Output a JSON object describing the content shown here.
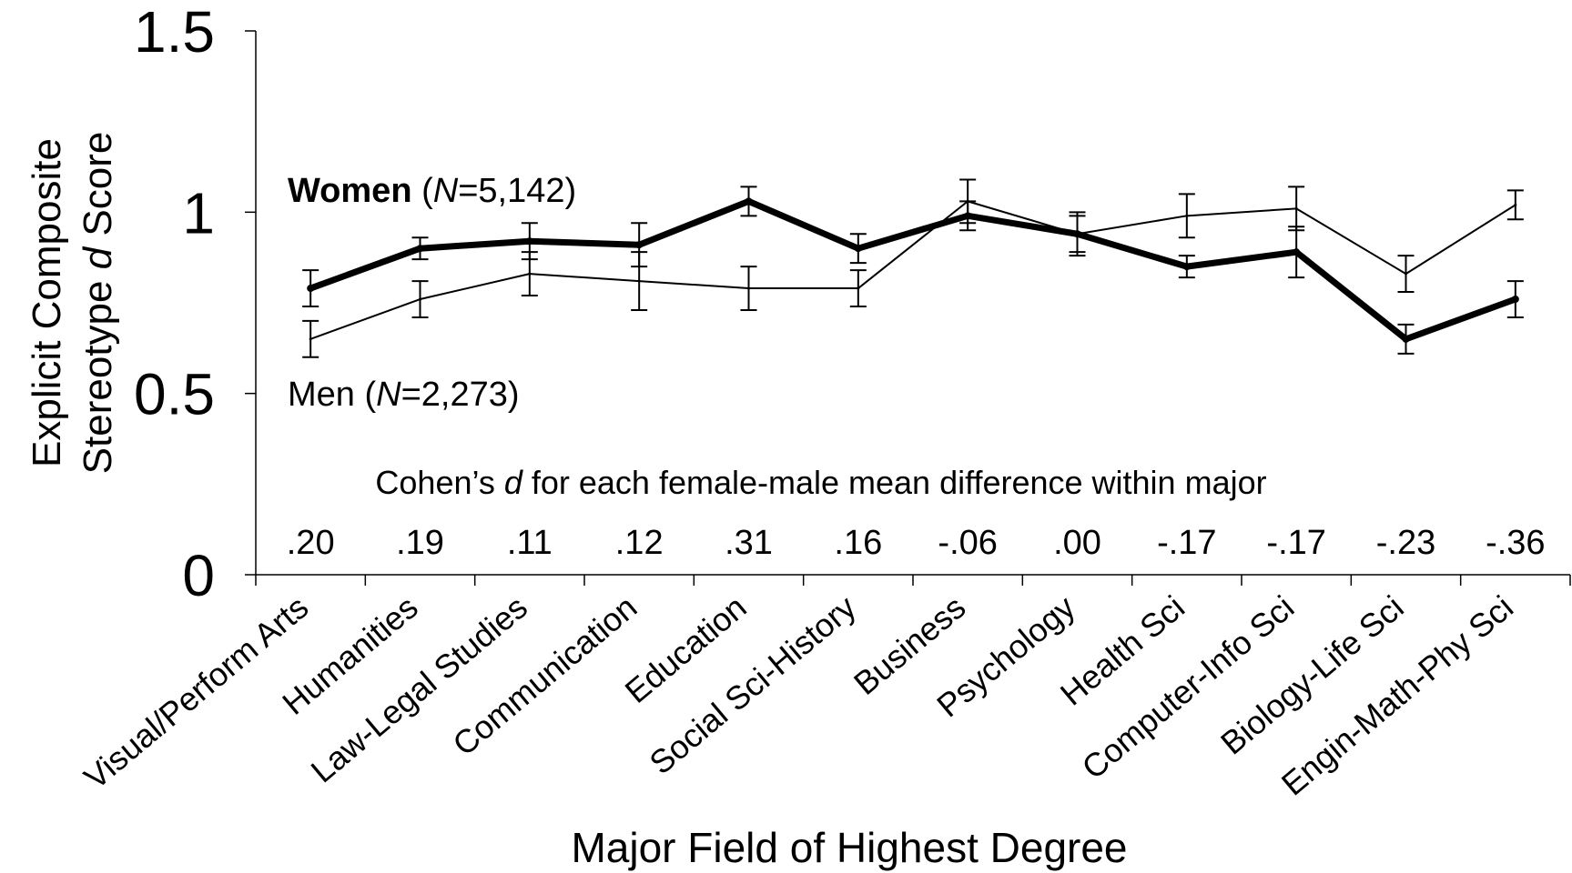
{
  "chart_data": {
    "type": "line",
    "xlabel": "Major Field of Highest Degree",
    "ylabel_line1": "Explicit Composite",
    "ylabel_line2_pre": "Stereotype ",
    "ylabel_line2_italic": "d",
    "ylabel_line2_post": " Score",
    "ylim": [
      0,
      1.5
    ],
    "yticks": [
      0,
      0.5,
      1,
      1.5
    ],
    "ytick_labels": [
      "0",
      "0.5",
      "1",
      "1.5"
    ],
    "grid": false,
    "categories": [
      "Visual/Perform Arts",
      "Humanities",
      "Law-Legal Studies",
      "Communication",
      "Education",
      "Social Sci-History",
      "Business",
      "Psychology",
      "Health Sci",
      "Computer-Info Sci",
      "Biology-Life Sci",
      "Engin-Math-Phy Sci"
    ],
    "series": [
      {
        "name": "Women",
        "n_text": "N",
        "n_value": "=5,142",
        "style": "thick",
        "values": [
          0.79,
          0.9,
          0.92,
          0.91,
          1.03,
          0.9,
          0.99,
          0.94,
          0.85,
          0.89,
          0.65,
          0.76
        ],
        "errors": [
          0.05,
          0.03,
          0.05,
          0.06,
          0.04,
          0.04,
          0.04,
          0.06,
          0.03,
          0.07,
          0.04,
          0.05
        ]
      },
      {
        "name": "Men",
        "n_text": "N",
        "n_value": "=2,273",
        "style": "thin",
        "values": [
          0.65,
          0.76,
          0.83,
          0.81,
          0.79,
          0.79,
          1.03,
          0.94,
          0.99,
          1.01,
          0.83,
          1.02
        ],
        "errors": [
          0.05,
          0.05,
          0.06,
          0.08,
          0.06,
          0.05,
          0.06,
          0.05,
          0.06,
          0.06,
          0.05,
          0.04
        ]
      }
    ],
    "annotation_pre": "Cohen’s ",
    "annotation_italic": "d",
    "annotation_post": " for each female-male mean difference within major",
    "cohens_d": [
      ".20",
      ".19",
      ".11",
      ".12",
      ".31",
      ".16",
      "-.06",
      ".00",
      "-.17",
      "-.17",
      "-.23",
      "-.36"
    ]
  }
}
